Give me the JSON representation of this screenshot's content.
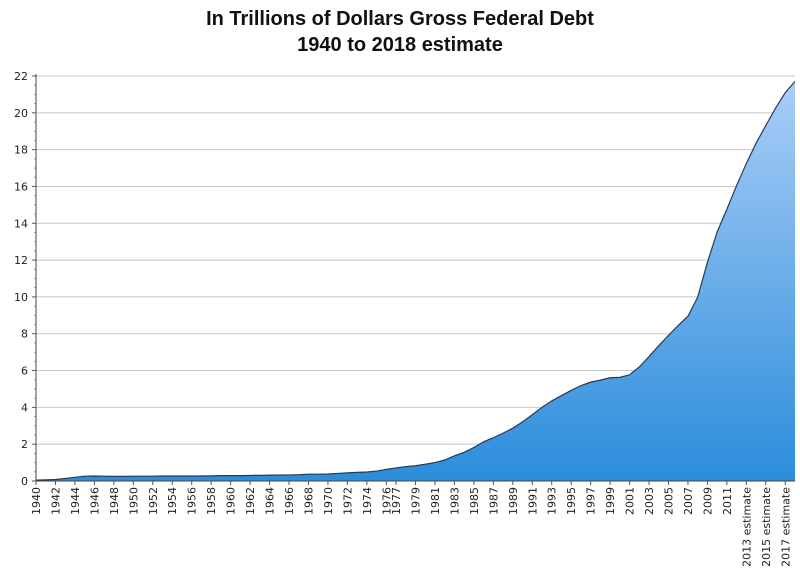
{
  "chart_data": {
    "type": "area",
    "title_line1": "In Trillions of Dollars Gross Federal Debt",
    "title_line2": "1940 to 2018 estimate",
    "xlabel": "",
    "ylabel": "",
    "ylim": [
      0,
      22
    ],
    "y_ticks": [
      0,
      2,
      4,
      6,
      8,
      10,
      12,
      14,
      16,
      18,
      20,
      22
    ],
    "grid": "horizontal",
    "legend": "none",
    "colors": {
      "area_top": "#a9cdf7",
      "area_bottom": "#2b8ddb",
      "outline": "#2a3a52",
      "grid": "#c8c8c8"
    },
    "categories": [
      "1940",
      "1941",
      "1942",
      "1943",
      "1944",
      "1945",
      "1946",
      "1947",
      "1948",
      "1949",
      "1950",
      "1951",
      "1952",
      "1953",
      "1954",
      "1955",
      "1956",
      "1957",
      "1958",
      "1959",
      "1960",
      "1961",
      "1962",
      "1963",
      "1964",
      "1965",
      "1966",
      "1967",
      "1968",
      "1969",
      "1970",
      "1971",
      "1972",
      "1973",
      "1974",
      "1975",
      "1976",
      "1977",
      "1978",
      "1979",
      "1980",
      "1981",
      "1982",
      "1983",
      "1984",
      "1985",
      "1986",
      "1987",
      "1988",
      "1989",
      "1990",
      "1991",
      "1992",
      "1993",
      "1994",
      "1995",
      "1996",
      "1997",
      "1998",
      "1999",
      "2000",
      "2001",
      "2002",
      "2003",
      "2004",
      "2005",
      "2006",
      "2007",
      "2008",
      "2009",
      "2010",
      "2011",
      "2012",
      "2013 estimate",
      "2014 estimate",
      "2015 estimate",
      "2016 estimate",
      "2017 estimate",
      "2018 estimate"
    ],
    "tick_labels": [
      "1940",
      "1942",
      "1944",
      "1946",
      "1948",
      "1950",
      "1952",
      "1954",
      "1956",
      "1958",
      "1960",
      "1962",
      "1964",
      "1966",
      "1968",
      "1970",
      "1972",
      "1974",
      "1976",
      "1977",
      "1979",
      "1981",
      "1983",
      "1985",
      "1987",
      "1989",
      "1991",
      "1993",
      "1995",
      "1997",
      "1999",
      "2001",
      "2003",
      "2005",
      "2007",
      "2009",
      "2011",
      "2013 estimate",
      "2015 estimate",
      "2017 estimate"
    ],
    "values": [
      0.05,
      0.06,
      0.08,
      0.14,
      0.2,
      0.26,
      0.27,
      0.26,
      0.25,
      0.25,
      0.26,
      0.26,
      0.26,
      0.27,
      0.27,
      0.27,
      0.27,
      0.27,
      0.28,
      0.29,
      0.29,
      0.29,
      0.3,
      0.31,
      0.32,
      0.32,
      0.33,
      0.34,
      0.37,
      0.37,
      0.38,
      0.41,
      0.44,
      0.47,
      0.49,
      0.54,
      0.63,
      0.71,
      0.78,
      0.83,
      0.91,
      1.0,
      1.14,
      1.37,
      1.56,
      1.82,
      2.13,
      2.35,
      2.6,
      2.87,
      3.21,
      3.6,
      4.0,
      4.35,
      4.64,
      4.92,
      5.18,
      5.37,
      5.48,
      5.61,
      5.63,
      5.77,
      6.2,
      6.76,
      7.35,
      7.91,
      8.45,
      8.95,
      9.99,
      11.88,
      13.53,
      14.76,
      16.05,
      17.25,
      18.35,
      19.31,
      20.25,
      21.1,
      21.7
    ]
  }
}
